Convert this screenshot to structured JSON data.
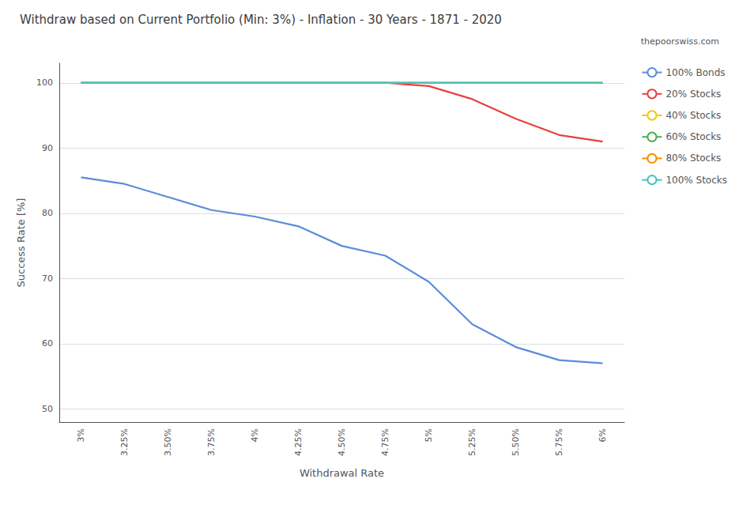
{
  "chart_data": {
    "type": "line",
    "title": "Withdraw based on Current Portfolio (Min: 3%) - Inflation - 30 Years - 1871 - 2020",
    "subtitle": "thepoorswiss.com",
    "xlabel": "Withdrawal Rate",
    "ylabel": "Success Rate [%]",
    "categories": [
      "3%",
      "3.25%",
      "3.50%",
      "3.75%",
      "4%",
      "4.25%",
      "4.50%",
      "4.75%",
      "5%",
      "5.25%",
      "5.50%",
      "5.75%",
      "6%"
    ],
    "series": [
      {
        "name": "100% Bonds",
        "color": "#5b8dd9",
        "values": [
          85.5,
          84.5,
          82.5,
          80.5,
          79.5,
          78.0,
          75.0,
          73.5,
          69.5,
          63.0,
          59.5,
          57.5,
          57.0
        ]
      },
      {
        "name": "20% Stocks",
        "color": "#e84040",
        "values": [
          100.0,
          100.0,
          100.0,
          100.0,
          100.0,
          100.0,
          100.0,
          100.0,
          99.5,
          97.5,
          94.5,
          92.0,
          91.0
        ]
      },
      {
        "name": "40% Stocks",
        "color": "#f5c518",
        "values": [
          100.0,
          100.0,
          100.0,
          100.0,
          100.0,
          100.0,
          100.0,
          100.0,
          100.0,
          100.0,
          100.0,
          100.0,
          100.0
        ]
      },
      {
        "name": "60% Stocks",
        "color": "#4caf50",
        "values": [
          100.0,
          100.0,
          100.0,
          100.0,
          100.0,
          100.0,
          100.0,
          100.0,
          100.0,
          100.0,
          100.0,
          100.0,
          100.0
        ]
      },
      {
        "name": "80% Stocks",
        "color": "#ff8c00",
        "values": [
          100.0,
          100.0,
          100.0,
          100.0,
          100.0,
          100.0,
          100.0,
          100.0,
          100.0,
          100.0,
          100.0,
          100.0,
          100.0
        ]
      },
      {
        "name": "100% Stocks",
        "color": "#40c4c4",
        "values": [
          100.0,
          100.0,
          100.0,
          100.0,
          100.0,
          100.0,
          100.0,
          100.0,
          100.0,
          100.0,
          100.0,
          100.0,
          100.0
        ]
      }
    ],
    "ylim": [
      48,
      103
    ],
    "yticks": [
      50,
      60,
      70,
      80,
      90,
      100
    ],
    "grid": true,
    "legend": "right"
  }
}
